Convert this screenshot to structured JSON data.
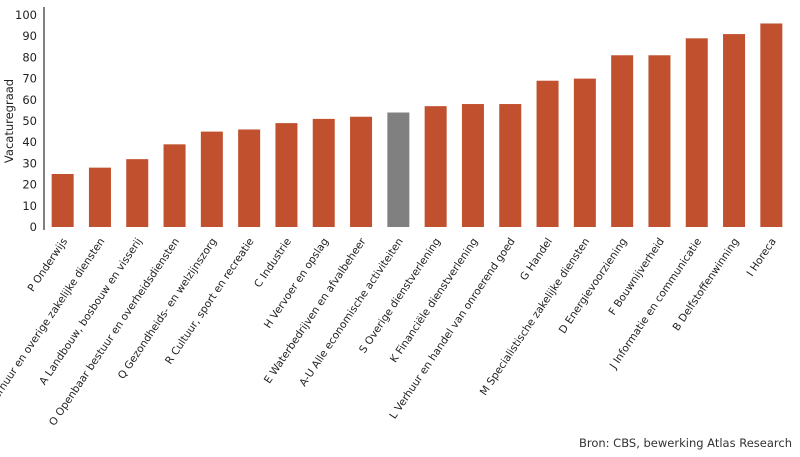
{
  "chart_data": {
    "type": "bar",
    "ylabel": "Vacaturegraad",
    "ylim": [
      0,
      100
    ],
    "yticks": [
      0,
      10,
      20,
      30,
      40,
      50,
      60,
      70,
      80,
      90,
      100
    ],
    "grid": false,
    "colors": {
      "default": "#c0502e",
      "highlight": "#808080"
    },
    "highlight_category": "A-U Alle economische activiteiten",
    "categories": [
      "P Onderwijs",
      "N Verhuur en overige zakelijke diensten",
      "A Landbouw, bosbouw en visserij",
      "O Openbaar bestuur en overheidsdiensten",
      "Q Gezondheids- en welzijnszorg",
      "R Cultuur, sport en recreatie",
      "C Industrie",
      "H Vervoer en opslag",
      "E Waterbedrijven en afvalbeheer",
      "A-U Alle economische activiteiten",
      "S Overige dienstverlening",
      "K Financiële dienstverlening",
      "L Verhuur en handel van onroerend goed",
      "G Handel",
      "M Specialistische zakelijke diensten",
      "D Energievoorziening",
      "F Bouwnijverheid",
      "J Informatie en communicatie",
      "B Delfstoffenwinning",
      "I Horeca"
    ],
    "values": [
      25,
      28,
      32,
      39,
      45,
      46,
      49,
      51,
      52,
      54,
      57,
      58,
      58,
      69,
      70,
      81,
      81,
      89,
      91,
      96
    ]
  },
  "source": "Bron: CBS, bewerking Atlas Research"
}
